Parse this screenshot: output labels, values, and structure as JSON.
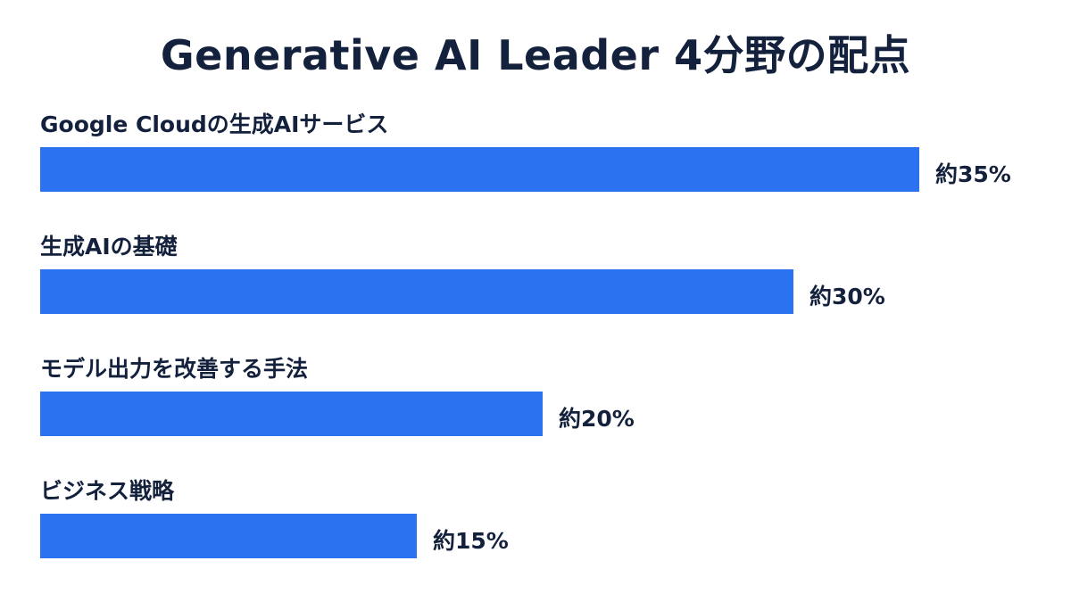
{
  "chart_data": {
    "type": "bar",
    "orientation": "horizontal",
    "title": "Generative AI Leader 4分野の配点",
    "categories": [
      "Google Cloudの生成AIサービス",
      "生成AIの基礎",
      "モデル出力を改善する手法",
      "ビジネス戦略"
    ],
    "values": [
      35,
      30,
      20,
      15
    ],
    "value_labels": [
      "約35%",
      "約30%",
      "約20%",
      "約15%"
    ],
    "unit": "%",
    "xlim": [
      0,
      35
    ],
    "grid": false,
    "legend": "none",
    "bar_color": "#2a72f0"
  }
}
